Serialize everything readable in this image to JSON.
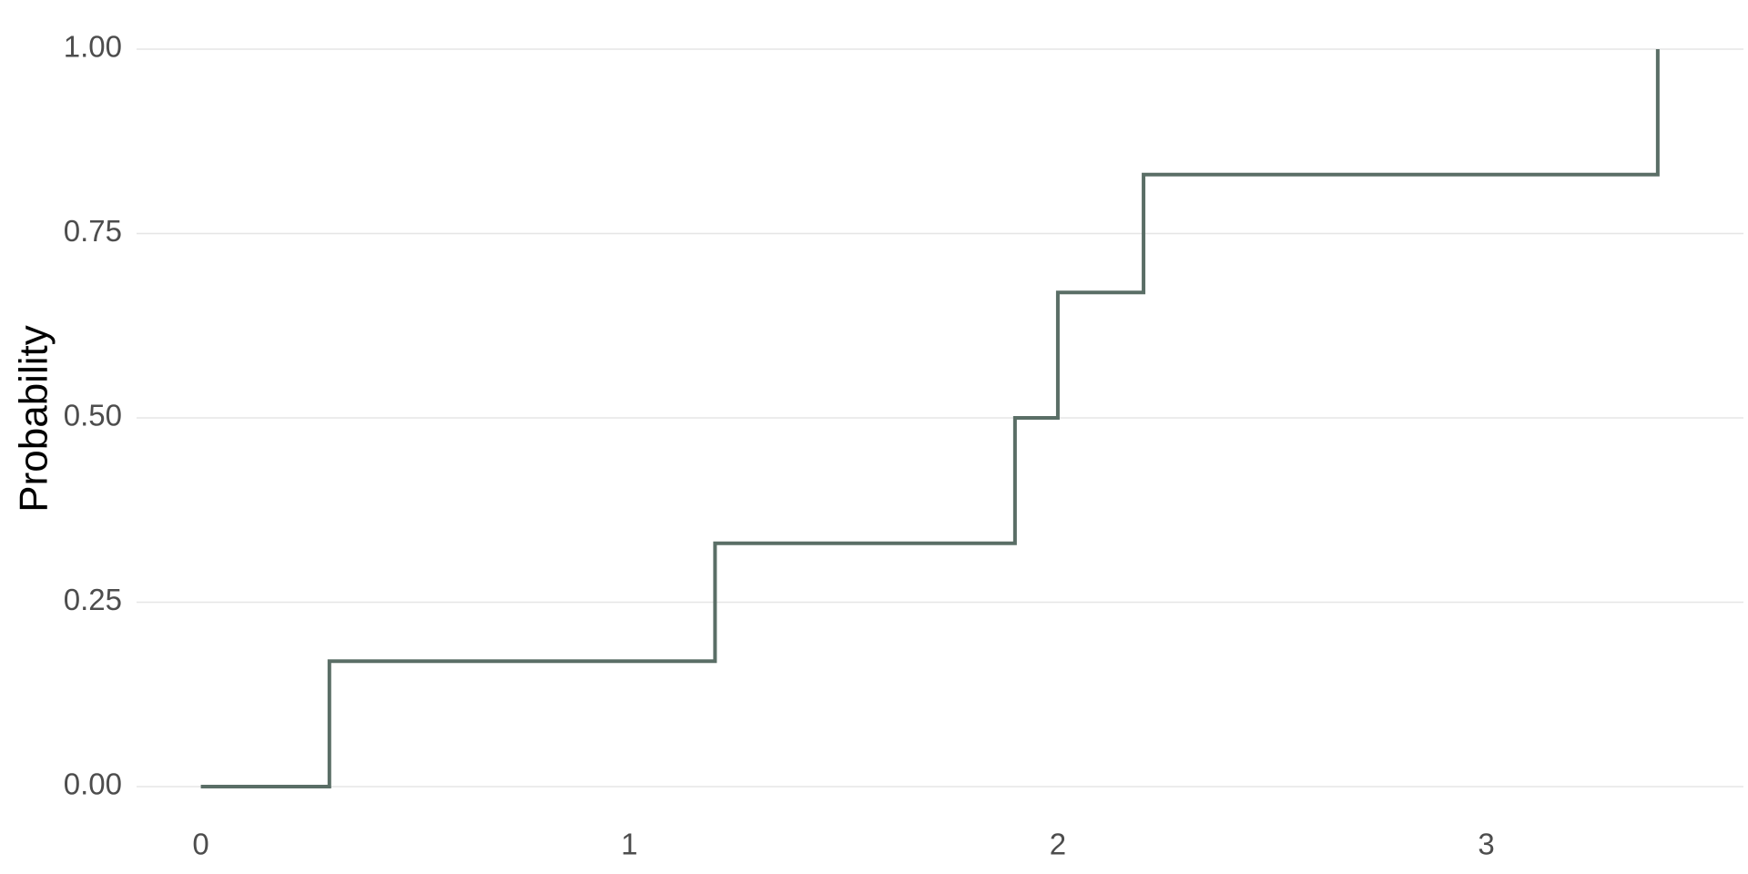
{
  "chart_data": {
    "type": "line",
    "subtype": "step",
    "title": "",
    "xlabel": "",
    "ylabel": "Probability",
    "xlim": [
      -0.15,
      3.6
    ],
    "ylim": [
      0,
      1
    ],
    "x_ticks": [
      0,
      1,
      2,
      3
    ],
    "x_tick_labels": [
      "0",
      "1",
      "2",
      "3"
    ],
    "y_ticks": [
      0,
      0.25,
      0.5,
      0.75,
      1.0
    ],
    "y_tick_labels": [
      "0.00",
      "0.25",
      "0.50",
      "0.75",
      "1.00"
    ],
    "grid": "horizontal-major",
    "legend": "none",
    "series": [
      {
        "color": "#5a6e66",
        "x": [
          0,
          0.3,
          1.2,
          1.9,
          2.0,
          2.2,
          3.4
        ],
        "y": [
          0,
          0.17,
          0.33,
          0.5,
          0.67,
          0.83,
          1.0
        ]
      }
    ]
  }
}
